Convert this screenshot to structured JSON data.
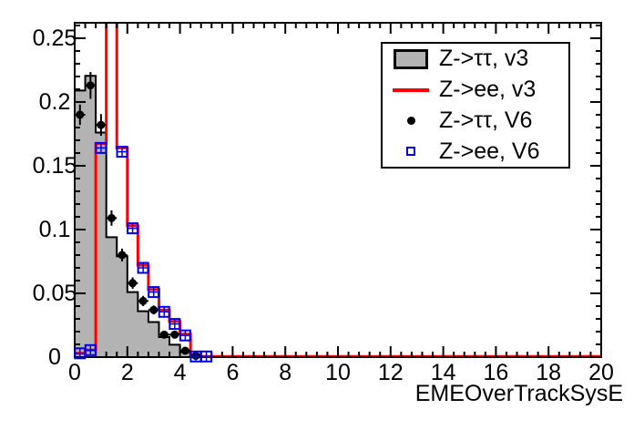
{
  "chart_data": {
    "type": "bar",
    "subtype": "step-histograms-with-scatter-overlay",
    "title": "",
    "xlabel": "EMEOverTrackSysE",
    "ylabel": "",
    "xlim": [
      0,
      20
    ],
    "ylim": [
      0,
      0.2621
    ],
    "xticks": [
      0,
      2,
      4,
      6,
      8,
      10,
      12,
      14,
      16,
      18,
      20
    ],
    "yticks": [
      0,
      0.05,
      0.1,
      0.15,
      0.2,
      0.25
    ],
    "ytick_labels": [
      "0",
      "0.05",
      "0.1",
      "0.15",
      "0.2",
      "0.25"
    ],
    "x_minor_step": 0.4,
    "y_minor_step": 0.01,
    "grid": false,
    "bin_width": 0.4,
    "bin_centers": [
      0.2,
      0.6,
      1.0,
      1.4,
      1.8,
      2.2,
      2.6,
      3.0,
      3.4,
      3.8,
      4.2,
      4.6
    ],
    "series": [
      {
        "name": "Z->ττ, v3",
        "style": "filled_step_histogram",
        "fill_color": "#b3b3b3",
        "line_color": "#000000",
        "values": [
          0.209,
          0.2205,
          0.176,
          0.094,
          0.079,
          0.051,
          0.036,
          0.0275,
          0.0157,
          0.0097,
          0.0039,
          0.001
        ]
      },
      {
        "name": "Z->ee, v3",
        "style": "step_histogram",
        "line_color": "#ff0000",
        "values": [
          0.003,
          0.0055,
          0.1675,
          0.33,
          0.164,
          0.103,
          0.072,
          0.053,
          0.037,
          0.028,
          0.018,
          0.002
        ],
        "offscale_note": "bin [1.2,1.6] exceeds axis maximum and is clipped at the frame top",
        "tail_value": 0.0005
      },
      {
        "name": "Z->ττ, V6",
        "style": "scatter",
        "marker": "filled_circle",
        "color": "#000000",
        "values": [
          0.19,
          0.213,
          0.182,
          0.109,
          0.08,
          0.058,
          0.044,
          0.037,
          0.0176,
          0.0176,
          0.005,
          0.001
        ],
        "yerr": [
          0.008,
          0.0105,
          0.0085,
          0.006,
          0.005,
          0.0045,
          0.004,
          0.0035,
          0.0025,
          0.0025,
          0.0012,
          0.001
        ],
        "xerr": 0.2
      },
      {
        "name": "Z->ee, V6",
        "style": "scatter",
        "marker": "open_square",
        "color": "#0000ee",
        "values": [
          0.003,
          0.0055,
          0.164,
          null,
          0.161,
          0.101,
          0.07,
          0.051,
          0.0355,
          0.026,
          0.017,
          0.0005
        ],
        "extra_points": [
          {
            "x": 5.0,
            "y": 0.0005
          }
        ],
        "yerr_const": 0.004,
        "xerr": 0.2
      }
    ],
    "legend": {
      "position": "top-right",
      "entries": [
        {
          "label": "Z->ττ, v3",
          "marker": "gray-filled-box"
        },
        {
          "label": "Z->ee, v3",
          "marker": "red-line"
        },
        {
          "label": "Z->ττ, V6",
          "marker": "black-filled-circle"
        },
        {
          "label": "Z->ee, V6",
          "marker": "blue-open-square"
        }
      ]
    },
    "colors": {
      "histogram_fill": "#b3b3b3",
      "histogram_outline": "#000000",
      "red_series": "#ff0000",
      "blue_series": "#0000ee",
      "frame": "#000000",
      "background": "#ffffff"
    }
  }
}
